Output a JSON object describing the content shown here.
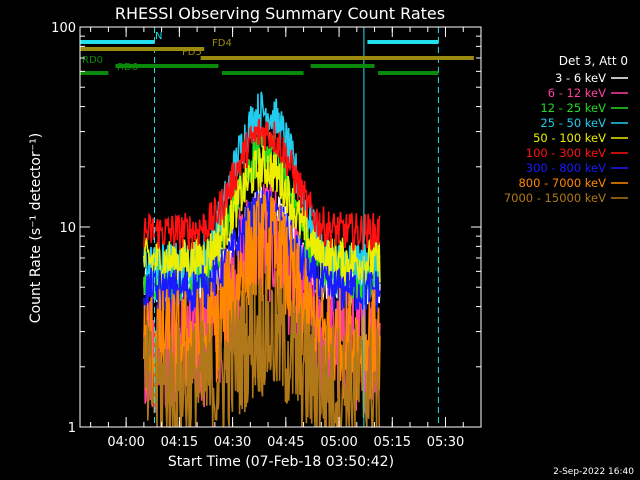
{
  "chart_data": {
    "type": "line",
    "title": "RHESSI Observing Summary Count Rates",
    "xlabel": "Start Time (07-Feb-18 03:50:42)",
    "ylabel": "Count Rate (s⁻¹ detector⁻¹)",
    "yscale": "log",
    "ylim": [
      1,
      100
    ],
    "xlim_minutes": [
      -13,
      100
    ],
    "x_ticks": [
      {
        "label": "04:00",
        "minute": 0
      },
      {
        "label": "04:15",
        "minute": 15
      },
      {
        "label": "04:30",
        "minute": 30
      },
      {
        "label": "04:45",
        "minute": 45
      },
      {
        "label": "05:00",
        "minute": 60
      },
      {
        "label": "05:15",
        "minute": 75
      },
      {
        "label": "05:30",
        "minute": 90
      }
    ],
    "y_ticks": [
      {
        "label": "1",
        "value": 1
      },
      {
        "label": "10",
        "value": 10
      },
      {
        "label": "100",
        "value": 100
      }
    ],
    "legend_header": "Det 3, Att 0",
    "series": [
      {
        "name": "3 - 6 keV",
        "color": "#ffffff",
        "base": 5,
        "peak": 13,
        "noise": 0.1
      },
      {
        "name": "6 - 12 keV",
        "color": "#ff3fa0",
        "base": 2.5,
        "peak": 9,
        "noise": 0.35
      },
      {
        "name": "12 - 25 keV",
        "color": "#22dd22",
        "base": 5.5,
        "peak": 24,
        "noise": 0.12
      },
      {
        "name": "25 - 50 keV",
        "color": "#22ccee",
        "base": 6.5,
        "peak": 38,
        "noise": 0.12
      },
      {
        "name": "50 - 100 keV",
        "color": "#eeee00",
        "base": 6.8,
        "peak": 20,
        "noise": 0.12
      },
      {
        "name": "100 - 300 keV",
        "color": "#ff1111",
        "base": 9.5,
        "peak": 30,
        "noise": 0.1
      },
      {
        "name": "300 - 800 keV",
        "color": "#1a1aff",
        "base": 4.8,
        "peak": 12,
        "noise": 0.12
      },
      {
        "name": "800 - 7000 keV",
        "color": "#ff8800",
        "base": 2.6,
        "peak": 8,
        "noise": 0.3
      },
      {
        "name": "7000 - 15000 keV",
        "color": "#b07818",
        "base": 1.6,
        "peak": 3,
        "noise": 0.35
      }
    ],
    "data_window_minutes": [
      5,
      71.5
    ],
    "peak_minute": 39,
    "flag_bars": [
      {
        "label": "N",
        "color": "#22e0ee",
        "segments": [
          [
            -13,
            8
          ],
          [
            68,
            88
          ]
        ]
      },
      {
        "label": "FD4",
        "color": "#9a8a10",
        "segments": [
          [
            -13,
            22
          ]
        ]
      },
      {
        "label": "FD5",
        "color": "#9a8a10",
        "segments": [
          [
            21,
            98
          ]
        ]
      },
      {
        "label": "RD0",
        "color": "#0a8a0a",
        "segments": [
          [
            -3,
            26
          ],
          [
            52,
            70
          ]
        ]
      },
      {
        "label": "RD6",
        "color": "#0a8a0a",
        "segments": [
          [
            -13,
            -5
          ],
          [
            27,
            50
          ],
          [
            71,
            88
          ]
        ]
      }
    ],
    "vertical_lines": [
      {
        "minute": -13,
        "color": "#22e0ee",
        "style": "solid"
      },
      {
        "minute": 8,
        "color": "#22e0ee",
        "style": "dashed"
      },
      {
        "minute": 67,
        "color": "#22e0ee",
        "style": "solid"
      },
      {
        "minute": 88,
        "color": "#22e0ee",
        "style": "dashed"
      }
    ]
  },
  "footer_date": "2-Sep-2022 16:40"
}
